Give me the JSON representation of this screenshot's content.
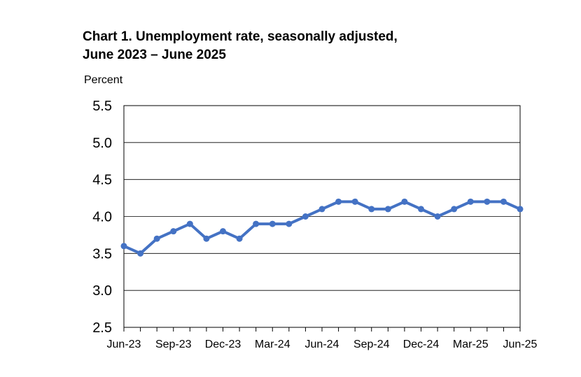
{
  "chart_data": {
    "type": "line",
    "title_line1": "Chart 1. Unemployment rate, seasonally adjusted,",
    "title_line2": "June 2023 – June 2025",
    "ylabel": "Percent",
    "xlabel": "",
    "ylim": [
      2.5,
      5.5
    ],
    "yticks": [
      "5.5",
      "5.0",
      "4.5",
      "4.0",
      "3.5",
      "3.0",
      "2.5"
    ],
    "ytick_values": [
      5.5,
      5.0,
      4.5,
      4.0,
      3.5,
      3.0,
      2.5
    ],
    "x_tick_labels": [
      "Jun-23",
      "Sep-23",
      "Dec-23",
      "Mar-24",
      "Jun-24",
      "Sep-24",
      "Dec-24",
      "Mar-25",
      "Jun-25"
    ],
    "x_tick_indices": [
      0,
      3,
      6,
      9,
      12,
      15,
      18,
      21,
      24
    ],
    "grid": "horizontal",
    "legend": "none",
    "series": [
      {
        "color": "#4472C4",
        "x": [
          "Jun-23",
          "Jul-23",
          "Aug-23",
          "Sep-23",
          "Oct-23",
          "Nov-23",
          "Dec-23",
          "Jan-24",
          "Feb-24",
          "Mar-24",
          "Apr-24",
          "May-24",
          "Jun-24",
          "Jul-24",
          "Aug-24",
          "Sep-24",
          "Oct-24",
          "Nov-24",
          "Dec-24",
          "Jan-25",
          "Feb-25",
          "Mar-25",
          "Apr-25",
          "May-25",
          "Jun-25"
        ],
        "values": [
          3.6,
          3.5,
          3.7,
          3.8,
          3.9,
          3.7,
          3.8,
          3.7,
          3.9,
          3.9,
          3.9,
          4.0,
          4.1,
          4.2,
          4.2,
          4.1,
          4.1,
          4.2,
          4.1,
          4.0,
          4.1,
          4.2,
          4.2,
          4.2,
          4.1
        ]
      }
    ]
  }
}
